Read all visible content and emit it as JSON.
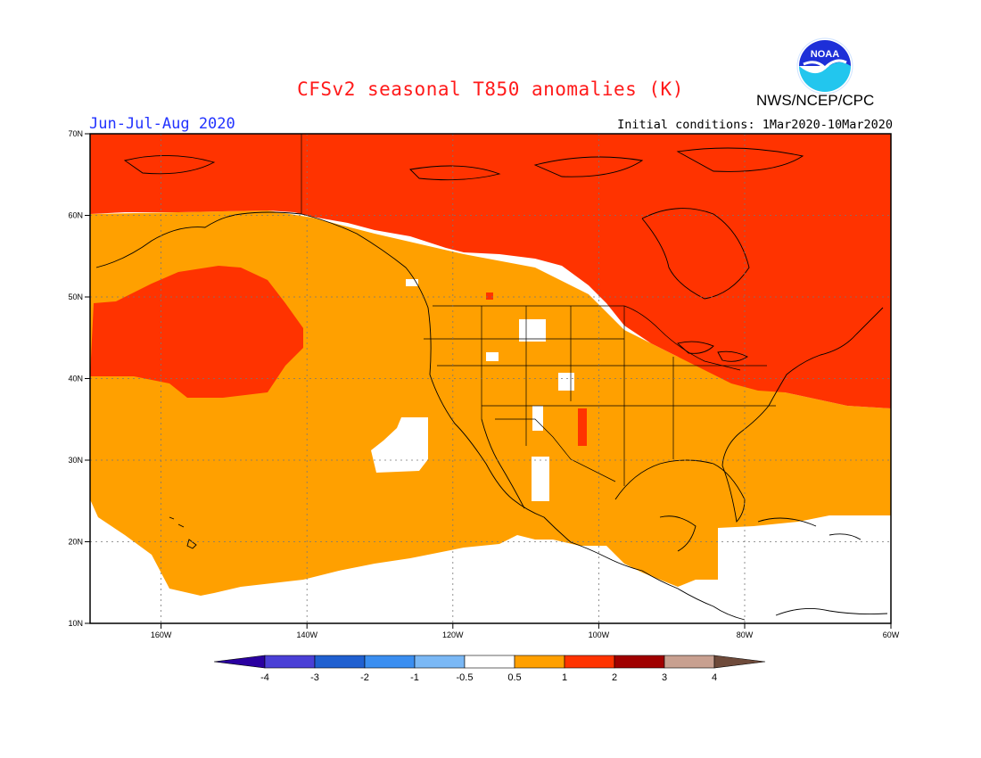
{
  "title": "CFSv2 seasonal T850 anomalies (K)",
  "season": "Jun-Jul-Aug 2020",
  "initial_conditions": "Initial conditions: 1Mar2020-10Mar2020",
  "agency": "NWS/NCEP/CPC",
  "logo_text": "NOAA",
  "lat_labels": [
    "70N",
    "60N",
    "50N",
    "40N",
    "30N",
    "20N",
    "10N"
  ],
  "lon_labels": [
    "160W",
    "140W",
    "120W",
    "100W",
    "80W",
    "60W"
  ],
  "colorbar": {
    "labels": [
      "-4",
      "-3",
      "-2",
      "-1",
      "-0.5",
      "0.5",
      "1",
      "2",
      "3",
      "4"
    ],
    "colors": [
      "#2a00a0",
      "#4a3fd6",
      "#2060d0",
      "#3a8ef0",
      "#7ab8f5",
      "#ffffff",
      "#ffa000",
      "#ff3300",
      "#a00000",
      "#c8a090",
      "#6e4a3a"
    ]
  },
  "map_colors": {
    "anom_0_5_to_1": "#ffa000",
    "anom_1_to_2": "#ff3300",
    "below_0_5": "#ffffff"
  }
}
